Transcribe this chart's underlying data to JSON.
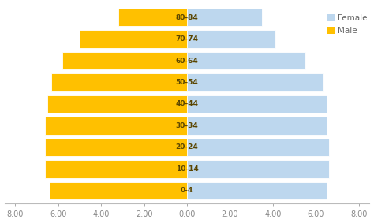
{
  "age_groups": [
    "0-4",
    "10-14",
    "20-24",
    "30-34",
    "40-44",
    "50-54",
    "60-64",
    "70-74",
    "80-84"
  ],
  "male_values": [
    6.4,
    6.6,
    6.6,
    6.6,
    6.5,
    6.3,
    5.8,
    5.0,
    3.2
  ],
  "female_values": [
    6.5,
    6.6,
    6.6,
    6.5,
    6.5,
    6.3,
    5.5,
    4.1,
    3.5
  ],
  "male_color": "#FFC000",
  "female_color": "#BDD7EE",
  "bar_edgecolor": "#ffffff",
  "xlim": [
    -8.5,
    8.5
  ],
  "xticks": [
    -8,
    -6,
    -4,
    -2,
    0,
    2,
    4,
    6,
    8
  ],
  "xtick_labels": [
    "8.00",
    "6.00",
    "4.00",
    "2.00",
    "0.00",
    "2.00",
    "4.00",
    "6.00",
    "8.00"
  ],
  "legend_female": "Female",
  "legend_male": "Male",
  "bar_height": 0.82,
  "label_fontsize": 6.5,
  "tick_fontsize": 7,
  "legend_fontsize": 7.5,
  "background_color": "#ffffff",
  "label_color": "#5a4500"
}
